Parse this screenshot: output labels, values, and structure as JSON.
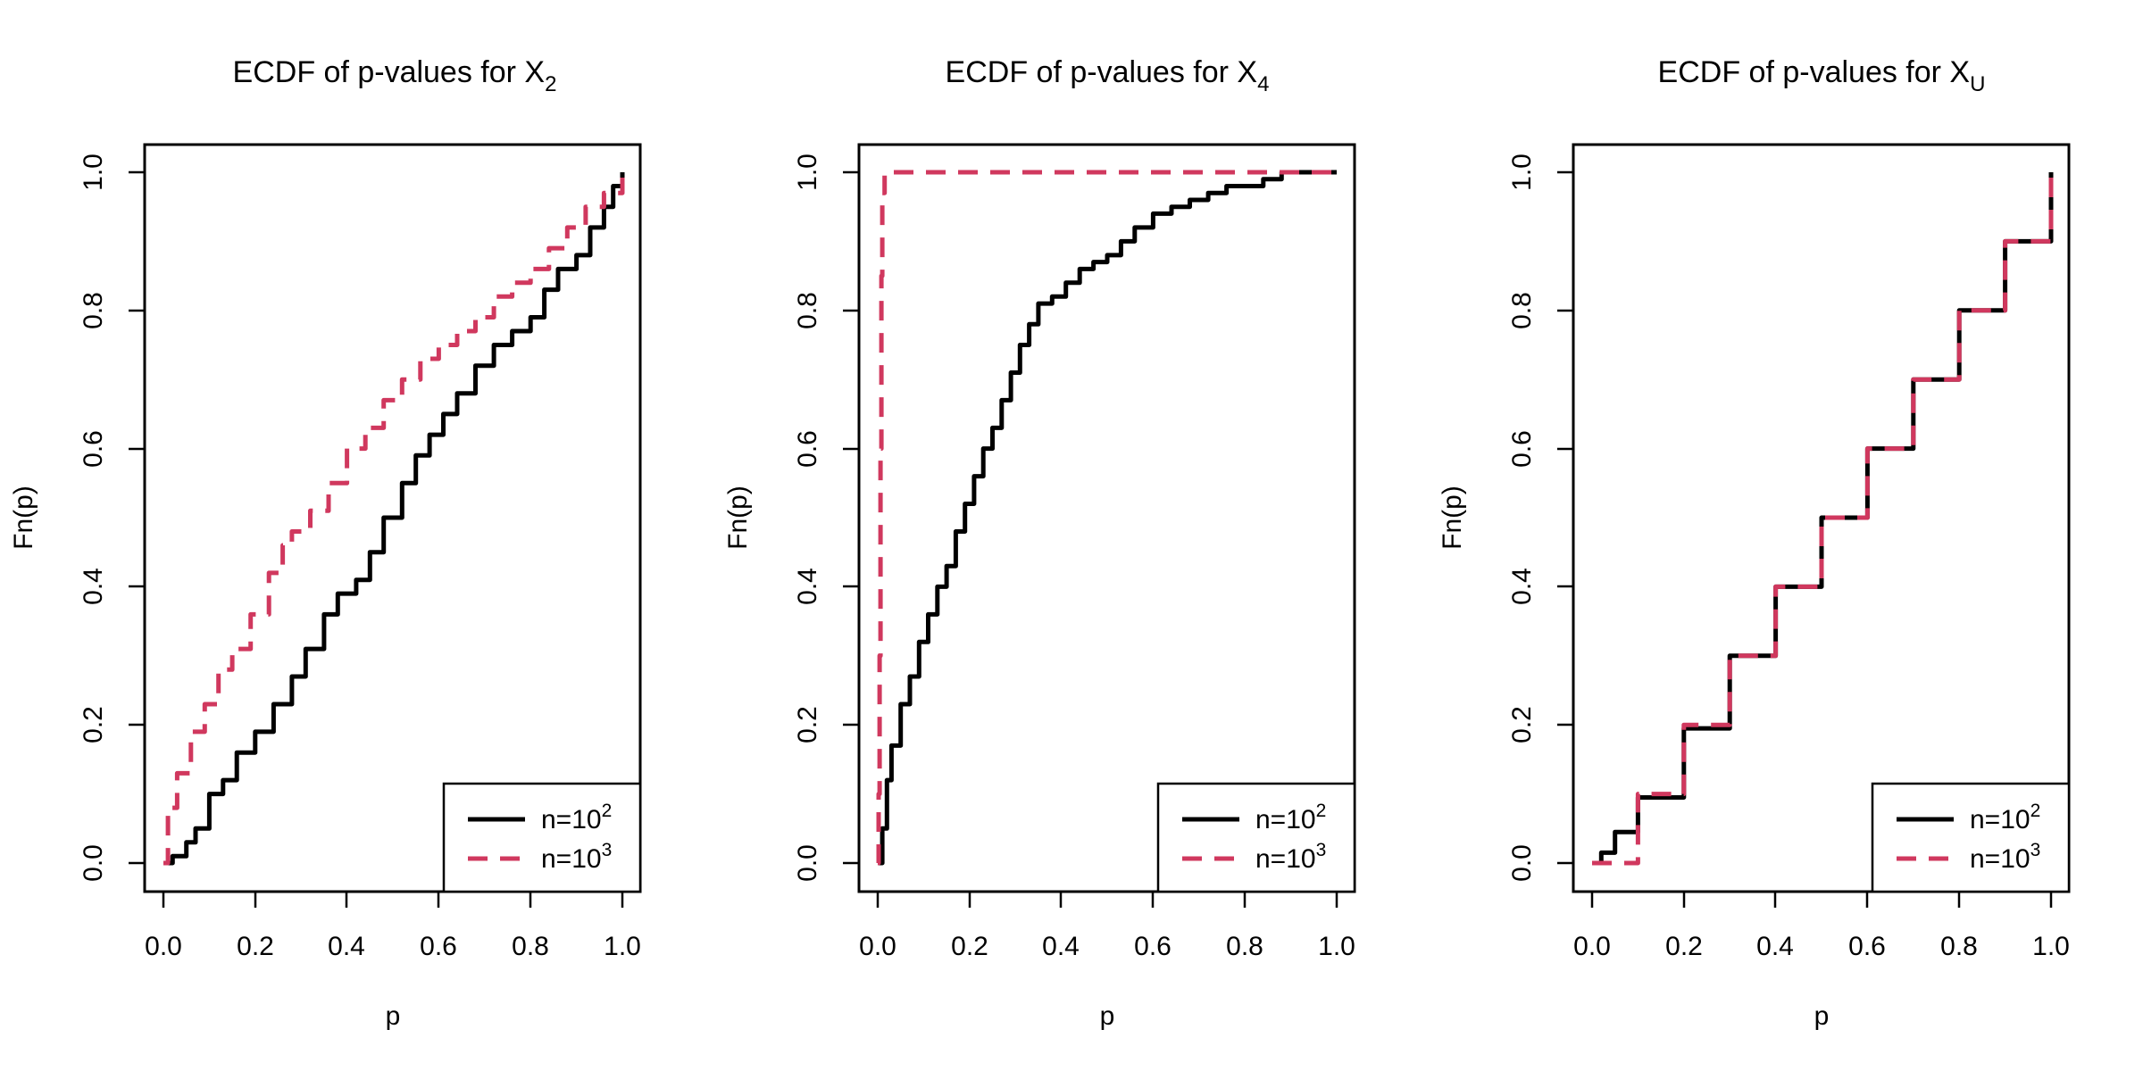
{
  "figure": {
    "colors": {
      "n100": "#000000",
      "n1000": "#d0385e",
      "frame": "#000000"
    }
  },
  "chart_data": [
    {
      "type": "line",
      "title": {
        "text": "ECDF of p-values for X",
        "subscript": "2"
      },
      "xlabel": "p",
      "ylabel": "Fn(p)",
      "xlim": [
        0,
        1
      ],
      "ylim": [
        0,
        1
      ],
      "xticks": [
        "0.0",
        "0.2",
        "0.4",
        "0.6",
        "0.8",
        "1.0"
      ],
      "yticks": [
        "0.0",
        "0.2",
        "0.4",
        "0.6",
        "0.8",
        "1.0"
      ],
      "legend": {
        "position": "bottom-right",
        "entries": [
          {
            "prefix": "n=10",
            "sup": "2"
          },
          {
            "prefix": "n=10",
            "sup": "3"
          }
        ]
      },
      "series": [
        {
          "name": "n=10^2",
          "style": "solid",
          "x": [
            0,
            0.02,
            0.05,
            0.07,
            0.1,
            0.13,
            0.16,
            0.2,
            0.24,
            0.28,
            0.31,
            0.35,
            0.38,
            0.42,
            0.45,
            0.48,
            0.52,
            0.55,
            0.58,
            0.61,
            0.64,
            0.68,
            0.72,
            0.76,
            0.8,
            0.83,
            0.86,
            0.9,
            0.93,
            0.96,
            0.98,
            1
          ],
          "y": [
            0,
            0.01,
            0.03,
            0.05,
            0.1,
            0.12,
            0.16,
            0.19,
            0.23,
            0.27,
            0.31,
            0.36,
            0.39,
            0.41,
            0.45,
            0.5,
            0.55,
            0.59,
            0.62,
            0.65,
            0.68,
            0.72,
            0.75,
            0.77,
            0.79,
            0.83,
            0.86,
            0.88,
            0.92,
            0.95,
            0.98,
            1
          ]
        },
        {
          "name": "n=10^3",
          "style": "dashed",
          "x": [
            0,
            0.01,
            0.03,
            0.06,
            0.09,
            0.12,
            0.15,
            0.19,
            0.23,
            0.26,
            0.28,
            0.32,
            0.36,
            0.4,
            0.44,
            0.48,
            0.52,
            0.56,
            0.6,
            0.64,
            0.68,
            0.72,
            0.76,
            0.8,
            0.84,
            0.88,
            0.92,
            0.96,
            1
          ],
          "y": [
            0,
            0.08,
            0.13,
            0.19,
            0.23,
            0.28,
            0.31,
            0.36,
            0.42,
            0.46,
            0.48,
            0.51,
            0.55,
            0.6,
            0.63,
            0.67,
            0.7,
            0.73,
            0.75,
            0.77,
            0.79,
            0.82,
            0.84,
            0.86,
            0.89,
            0.92,
            0.95,
            0.97,
            1
          ]
        }
      ]
    },
    {
      "type": "line",
      "title": {
        "text": "ECDF of p-values for X",
        "subscript": "4"
      },
      "xlabel": "p",
      "ylabel": "Fn(p)",
      "xlim": [
        0,
        1
      ],
      "ylim": [
        0,
        1
      ],
      "xticks": [
        "0.0",
        "0.2",
        "0.4",
        "0.6",
        "0.8",
        "1.0"
      ],
      "yticks": [
        "0.0",
        "0.2",
        "0.4",
        "0.6",
        "0.8",
        "1.0"
      ],
      "legend": {
        "position": "bottom-right",
        "entries": [
          {
            "prefix": "n=10",
            "sup": "2"
          },
          {
            "prefix": "n=10",
            "sup": "3"
          }
        ]
      },
      "series": [
        {
          "name": "n=10^2",
          "style": "solid",
          "x": [
            0,
            0.01,
            0.02,
            0.03,
            0.05,
            0.07,
            0.09,
            0.11,
            0.13,
            0.15,
            0.17,
            0.19,
            0.21,
            0.23,
            0.25,
            0.27,
            0.29,
            0.31,
            0.33,
            0.35,
            0.38,
            0.41,
            0.44,
            0.47,
            0.5,
            0.53,
            0.56,
            0.6,
            0.64,
            0.68,
            0.72,
            0.76,
            0.8,
            0.84,
            0.88,
            0.92,
            1
          ],
          "y": [
            0,
            0.05,
            0.12,
            0.17,
            0.23,
            0.27,
            0.32,
            0.36,
            0.4,
            0.43,
            0.48,
            0.52,
            0.56,
            0.6,
            0.63,
            0.67,
            0.71,
            0.75,
            0.78,
            0.81,
            0.82,
            0.84,
            0.86,
            0.87,
            0.88,
            0.9,
            0.92,
            0.94,
            0.95,
            0.96,
            0.97,
            0.98,
            0.98,
            0.99,
            1,
            1,
            1
          ]
        },
        {
          "name": "n=10^3",
          "style": "dashed",
          "x": [
            0,
            0.002,
            0.004,
            0.006,
            0.008,
            0.01,
            0.015,
            1
          ],
          "y": [
            0,
            0.1,
            0.3,
            0.6,
            0.85,
            0.97,
            1,
            1
          ]
        }
      ]
    },
    {
      "type": "line",
      "title": {
        "text": "ECDF of p-values for X",
        "subscript": "U"
      },
      "xlabel": "p",
      "ylabel": "Fn(p)",
      "xlim": [
        0,
        1
      ],
      "ylim": [
        0,
        1
      ],
      "xticks": [
        "0.0",
        "0.2",
        "0.4",
        "0.6",
        "0.8",
        "1.0"
      ],
      "yticks": [
        "0.0",
        "0.2",
        "0.4",
        "0.6",
        "0.8",
        "1.0"
      ],
      "legend": {
        "position": "bottom-right",
        "entries": [
          {
            "prefix": "n=10",
            "sup": "2"
          },
          {
            "prefix": "n=10",
            "sup": "3"
          }
        ]
      },
      "series": [
        {
          "name": "n=10^2",
          "style": "solid",
          "x": [
            0,
            0.02,
            0.05,
            0.1,
            0.2,
            0.3,
            0.4,
            0.5,
            0.6,
            0.7,
            0.8,
            0.9,
            1
          ],
          "y": [
            0,
            0.015,
            0.045,
            0.095,
            0.195,
            0.3,
            0.4,
            0.5,
            0.6,
            0.7,
            0.8,
            0.9,
            1
          ]
        },
        {
          "name": "n=10^3",
          "style": "dashed",
          "x": [
            0,
            0.1,
            0.2,
            0.3,
            0.4,
            0.5,
            0.6,
            0.7,
            0.8,
            0.9,
            1
          ],
          "y": [
            0,
            0.1,
            0.2,
            0.3,
            0.4,
            0.5,
            0.6,
            0.7,
            0.8,
            0.9,
            1
          ]
        }
      ]
    }
  ]
}
